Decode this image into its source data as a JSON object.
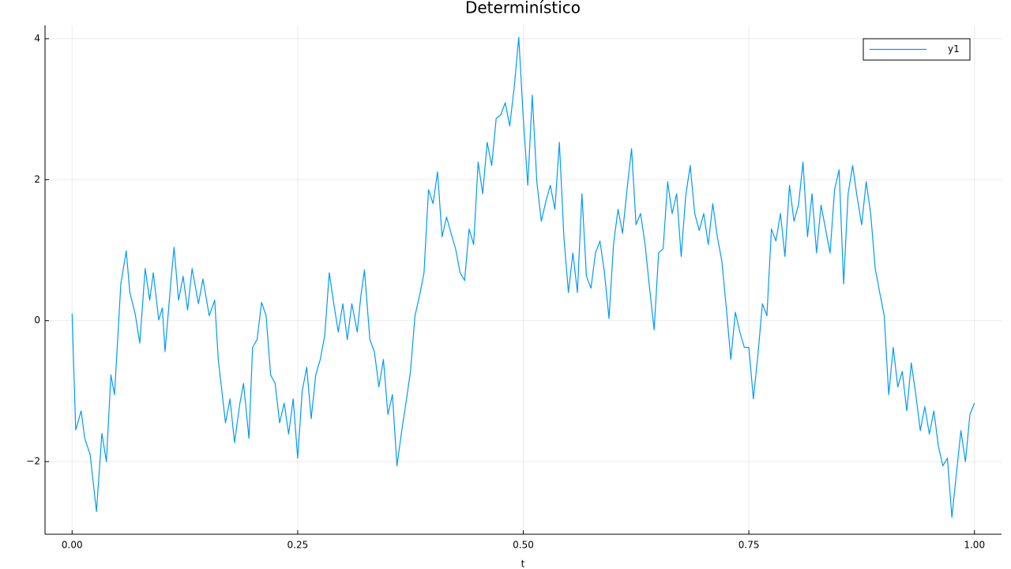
{
  "chart_data": {
    "type": "line",
    "title": "Determinístico",
    "x_label": "t",
    "xlim": [
      -0.03,
      1.03
    ],
    "ylim": [
      -3.03,
      4.19
    ],
    "xticks": [
      {
        "value": 0,
        "label": "0.00"
      },
      {
        "value": 0.25,
        "label": "0.25"
      },
      {
        "value": 0.5,
        "label": "0.50"
      },
      {
        "value": 0.75,
        "label": "0.75"
      },
      {
        "value": 1,
        "label": "1.00"
      }
    ],
    "yticks": [
      {
        "value": -2,
        "label": "−2"
      },
      0,
      2,
      4
    ],
    "grid": true,
    "legend": "top-right",
    "x": [
      0,
      0.004,
      0.01,
      0.014,
      0.02,
      0.027,
      0.033,
      0.038,
      0.043,
      0.047,
      0.05,
      0.054,
      0.06,
      0.064,
      0.07,
      0.075,
      0.081,
      0.086,
      0.09,
      0.096,
      0.1,
      0.103,
      0.11,
      0.113,
      0.118,
      0.123,
      0.128,
      0.133,
      0.14,
      0.145,
      0.152,
      0.158,
      0.162,
      0.17,
      0.175,
      0.18,
      0.186,
      0.19,
      0.196,
      0.2,
      0.205,
      0.21,
      0.215,
      0.22,
      0.225,
      0.23,
      0.235,
      0.24,
      0.245,
      0.25,
      0.255,
      0.26,
      0.265,
      0.27,
      0.275,
      0.28,
      0.285,
      0.29,
      0.295,
      0.3,
      0.305,
      0.31,
      0.316,
      0.32,
      0.324,
      0.33,
      0.335,
      0.34,
      0.345,
      0.35,
      0.355,
      0.36,
      0.366,
      0.37,
      0.375,
      0.38,
      0.385,
      0.39,
      0.395,
      0.4,
      0.405,
      0.41,
      0.415,
      0.42,
      0.425,
      0.43,
      0.435,
      0.44,
      0.445,
      0.45,
      0.455,
      0.46,
      0.465,
      0.47,
      0.475,
      0.48,
      0.485,
      0.49,
      0.495,
      0.5,
      0.505,
      0.51,
      0.515,
      0.52,
      0.525,
      0.53,
      0.535,
      0.54,
      0.545,
      0.55,
      0.555,
      0.56,
      0.565,
      0.57,
      0.575,
      0.58,
      0.585,
      0.59,
      0.595,
      0.6,
      0.605,
      0.61,
      0.615,
      0.62,
      0.625,
      0.63,
      0.635,
      0.64,
      0.645,
      0.65,
      0.655,
      0.66,
      0.665,
      0.67,
      0.675,
      0.68,
      0.685,
      0.69,
      0.695,
      0.7,
      0.705,
      0.71,
      0.715,
      0.72,
      0.725,
      0.73,
      0.735,
      0.74,
      0.745,
      0.75,
      0.755,
      0.76,
      0.765,
      0.77,
      0.775,
      0.78,
      0.785,
      0.79,
      0.795,
      0.8,
      0.805,
      0.81,
      0.815,
      0.82,
      0.825,
      0.83,
      0.835,
      0.84,
      0.845,
      0.85,
      0.855,
      0.86,
      0.865,
      0.87,
      0.875,
      0.88,
      0.885,
      0.89,
      0.895,
      0.9,
      0.905,
      0.91,
      0.915,
      0.92,
      0.925,
      0.93,
      0.935,
      0.94,
      0.945,
      0.95,
      0.955,
      0.96,
      0.965,
      0.97,
      0.975,
      0.98,
      0.985,
      0.99,
      0.995,
      1
    ],
    "series": [
      {
        "name": "y1",
        "color": "#009af9",
        "values": [
          0.1,
          -1.55,
          -1.28,
          -1.67,
          -1.9,
          -2.71,
          -1.6,
          -2.0,
          -0.77,
          -1.05,
          -0.38,
          0.52,
          0.99,
          0.4,
          0.09,
          -0.32,
          0.74,
          0.29,
          0.68,
          0.01,
          0.18,
          -0.44,
          0.63,
          1.04,
          0.29,
          0.63,
          0.15,
          0.74,
          0.24,
          0.59,
          0.07,
          0.29,
          -0.55,
          -1.45,
          -1.11,
          -1.73,
          -1.17,
          -0.89,
          -1.67,
          -0.38,
          -0.27,
          0.26,
          0.07,
          -0.77,
          -0.89,
          -1.45,
          -1.17,
          -1.61,
          -1.11,
          -1.95,
          -1.0,
          -0.66,
          -1.39,
          -0.77,
          -0.55,
          -0.21,
          0.68,
          0.24,
          -0.16,
          0.24,
          -0.27,
          0.24,
          -0.16,
          0.35,
          0.72,
          -0.27,
          -0.44,
          -0.94,
          -0.55,
          -1.33,
          -1.05,
          -2.06,
          -1.5,
          -1.17,
          -0.72,
          0.07,
          0.35,
          0.68,
          1.86,
          1.66,
          2.11,
          1.19,
          1.47,
          1.24,
          1.02,
          0.68,
          0.57,
          1.3,
          1.08,
          2.25,
          1.8,
          2.53,
          2.2,
          2.87,
          2.92,
          3.09,
          2.76,
          3.32,
          4.02,
          2.87,
          1.92,
          3.2,
          1.97,
          1.41,
          1.69,
          1.92,
          1.58,
          2.53,
          1.19,
          0.4,
          0.96,
          0.4,
          1.8,
          0.63,
          0.46,
          0.96,
          1.13,
          0.68,
          0.03,
          1.08,
          1.58,
          1.24,
          1.86,
          2.44,
          1.36,
          1.52,
          1.08,
          0.46,
          -0.13,
          0.96,
          1.02,
          1.97,
          1.52,
          1.8,
          0.91,
          1.77,
          2.2,
          1.52,
          1.28,
          1.52,
          1.08,
          1.66,
          1.19,
          0.85,
          0.18,
          -0.55,
          0.12,
          -0.16,
          -0.38,
          -0.38,
          -1.11,
          -0.49,
          0.24,
          0.07,
          1.3,
          1.13,
          1.52,
          0.91,
          1.92,
          1.41,
          1.64,
          2.25,
          1.19,
          1.8,
          0.96,
          1.64,
          1.3,
          0.96,
          1.86,
          2.14,
          0.52,
          1.8,
          2.2,
          1.75,
          1.36,
          1.97,
          1.52,
          0.74,
          0.4,
          0.07,
          -1.05,
          -0.38,
          -0.94,
          -0.72,
          -1.28,
          -0.6,
          -1.05,
          -1.56,
          -1.22,
          -1.61,
          -1.28,
          -1.78,
          -2.06,
          -1.95,
          -2.79,
          -2.17,
          -1.56,
          -2.0,
          -1.33,
          -1.17
        ]
      }
    ]
  }
}
